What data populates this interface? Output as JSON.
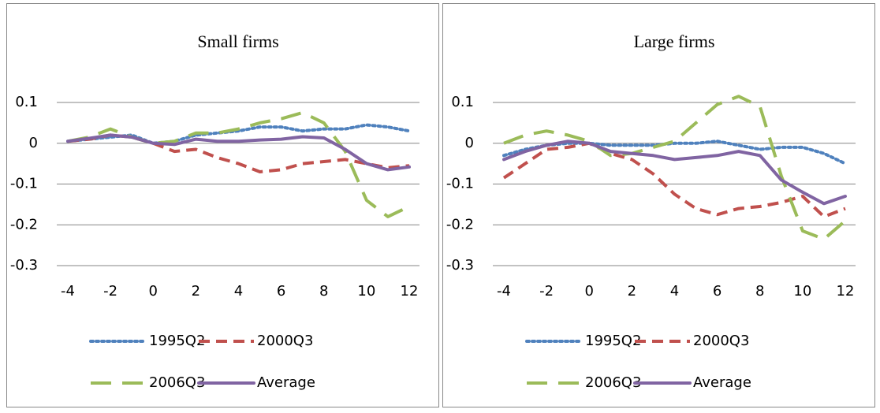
{
  "chart_data": [
    {
      "type": "line",
      "title": "Small firms",
      "x": [
        -4,
        -3,
        -2,
        -1,
        0,
        1,
        2,
        3,
        4,
        5,
        6,
        7,
        8,
        9,
        10,
        11,
        12
      ],
      "xlim": [
        -4,
        12
      ],
      "xticks": [
        -4,
        -2,
        0,
        2,
        4,
        6,
        8,
        10,
        12
      ],
      "ylim": [
        -0.3,
        0.1
      ],
      "yticks": [
        0.1,
        0,
        -0.1,
        -0.2,
        -0.3
      ],
      "grid": true,
      "series": [
        {
          "name": "1995Q2",
          "color": "#4f81bd",
          "style": "dotted",
          "values": [
            0.005,
            0.01,
            0.015,
            0.02,
            0.0,
            0.005,
            0.02,
            0.025,
            0.03,
            0.04,
            0.04,
            0.03,
            0.035,
            0.035,
            0.045,
            0.04,
            0.03
          ]
        },
        {
          "name": "2000Q3",
          "color": "#c0504d",
          "style": "dashed",
          "values": [
            0.005,
            0.01,
            0.02,
            0.015,
            0.0,
            -0.02,
            -0.015,
            -0.035,
            -0.05,
            -0.07,
            -0.065,
            -0.05,
            -0.045,
            -0.04,
            -0.05,
            -0.06,
            -0.055
          ]
        },
        {
          "name": "2006Q3",
          "color": "#9bbb59",
          "style": "long-dash",
          "values": [
            0.005,
            0.015,
            0.035,
            0.015,
            0.0,
            0.005,
            0.025,
            0.025,
            0.035,
            0.05,
            0.06,
            0.075,
            0.05,
            -0.02,
            -0.14,
            -0.18,
            -0.155
          ]
        },
        {
          "name": "Average",
          "color": "#8064a2",
          "style": "solid",
          "values": [
            0.005,
            0.012,
            0.02,
            0.015,
            0.0,
            -0.003,
            0.01,
            0.005,
            0.005,
            0.008,
            0.01,
            0.016,
            0.013,
            -0.015,
            -0.05,
            -0.065,
            -0.058
          ]
        }
      ]
    },
    {
      "type": "line",
      "title": "Large firms",
      "x": [
        -4,
        -3,
        -2,
        -1,
        0,
        1,
        2,
        3,
        4,
        5,
        6,
        7,
        8,
        9,
        10,
        11,
        12
      ],
      "xlim": [
        -4,
        12
      ],
      "xticks": [
        -4,
        -2,
        0,
        2,
        4,
        6,
        8,
        10,
        12
      ],
      "ylim": [
        -0.3,
        0.1
      ],
      "yticks": [
        0.1,
        0,
        -0.1,
        -0.2,
        -0.3
      ],
      "grid": true,
      "series": [
        {
          "name": "1995Q2",
          "color": "#4f81bd",
          "style": "dotted",
          "values": [
            -0.03,
            -0.015,
            -0.005,
            0.0,
            0.0,
            -0.005,
            -0.005,
            -0.005,
            0.0,
            0.0,
            0.005,
            -0.005,
            -0.015,
            -0.01,
            -0.01,
            -0.025,
            -0.05
          ]
        },
        {
          "name": "2000Q3",
          "color": "#c0504d",
          "style": "dashed",
          "values": [
            -0.085,
            -0.05,
            -0.015,
            -0.01,
            0.0,
            -0.025,
            -0.04,
            -0.075,
            -0.125,
            -0.16,
            -0.175,
            -0.16,
            -0.155,
            -0.145,
            -0.13,
            -0.18,
            -0.16
          ]
        },
        {
          "name": "2006Q3",
          "color": "#9bbb59",
          "style": "long-dash",
          "values": [
            0.0,
            0.02,
            0.03,
            0.02,
            0.005,
            -0.03,
            -0.025,
            -0.01,
            0.005,
            0.05,
            0.095,
            0.115,
            0.09,
            -0.08,
            -0.215,
            -0.235,
            -0.19
          ]
        },
        {
          "name": "Average",
          "color": "#8064a2",
          "style": "solid",
          "values": [
            -0.04,
            -0.02,
            -0.005,
            0.005,
            0.0,
            -0.02,
            -0.025,
            -0.03,
            -0.04,
            -0.035,
            -0.03,
            -0.02,
            -0.03,
            -0.09,
            -0.12,
            -0.148,
            -0.13
          ]
        }
      ]
    }
  ]
}
